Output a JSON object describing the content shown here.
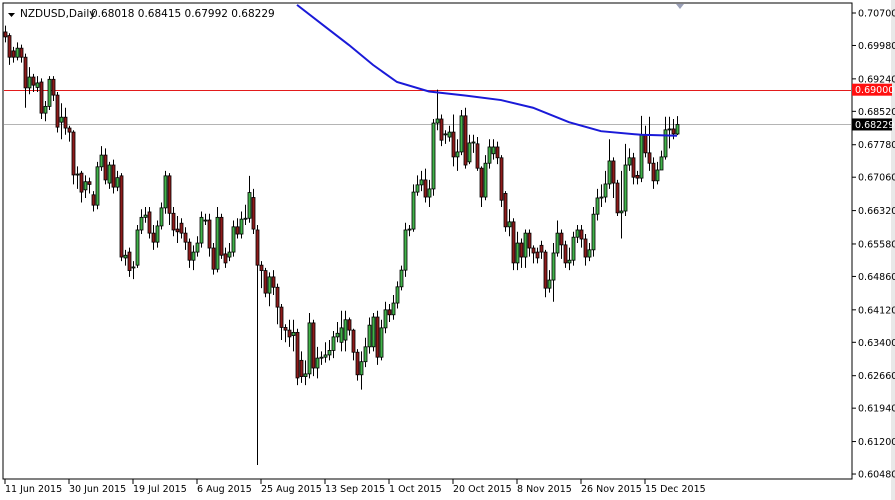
{
  "header": {
    "symbol": "NZDUSD,Daily",
    "ohlc_text": "0.68018 0.68415 0.67992 0.68229",
    "dropdown_icon": "triangle-down-icon"
  },
  "colors": {
    "bull": "#41b24a",
    "bear": "#8e1b1b",
    "outline": "#000000",
    "moving_average": "#1a1ad8",
    "resistance_line": "#e31b1b",
    "bid_line": "#b4b4b4",
    "resistance_label_bg": "#ff1010",
    "bid_label_bg": "#000000"
  },
  "chart_data": {
    "type": "candlestick",
    "title": "NZDUSD,Daily",
    "ylim": [
      0.6048,
      0.707
    ],
    "y_ticks": [
      "0.70700",
      "0.69980",
      "0.69240",
      "0.68520",
      "0.67780",
      "0.67060",
      "0.66320",
      "0.65580",
      "0.64860",
      "0.64120",
      "0.63400",
      "0.62660",
      "0.61940",
      "0.61200",
      "0.60480"
    ],
    "x_tick_labels": [
      {
        "label": "11 Jun 2015",
        "bar": 0
      },
      {
        "label": "30 Jun 2015",
        "bar": 16
      },
      {
        "label": "19 Jul 2015",
        "bar": 32
      },
      {
        "label": "6 Aug 2015",
        "bar": 48
      },
      {
        "label": "25 Aug 2015",
        "bar": 64
      },
      {
        "label": "13 Sep 2015",
        "bar": 80
      },
      {
        "label": "1 Oct 2015",
        "bar": 96
      },
      {
        "label": "20 Oct 2015",
        "bar": 112
      },
      {
        "label": "8 Nov 2015",
        "bar": 128
      },
      {
        "label": "26 Nov 2015",
        "bar": 144
      },
      {
        "label": "15 Dec 2015",
        "bar": 160
      }
    ],
    "horizontal_lines": [
      {
        "value": 0.69,
        "label": "0.69000",
        "kind": "resistance"
      },
      {
        "value": 0.68229,
        "label": "0.68229",
        "kind": "bid"
      }
    ],
    "moving_average": [
      [
        73,
        0.7088
      ],
      [
        80,
        0.704
      ],
      [
        86,
        0.6999
      ],
      [
        92,
        0.6955
      ],
      [
        98,
        0.6917
      ],
      [
        106,
        0.6896
      ],
      [
        115,
        0.6887
      ],
      [
        124,
        0.6877
      ],
      [
        132,
        0.686
      ],
      [
        141,
        0.6828
      ],
      [
        149,
        0.6808
      ],
      [
        159,
        0.68
      ],
      [
        168,
        0.6798
      ]
    ],
    "candles_ohlc": [
      [
        0.7028,
        0.7042,
        0.7005,
        0.7017
      ],
      [
        0.702,
        0.7025,
        0.6955,
        0.6972
      ],
      [
        0.6986,
        0.6995,
        0.696,
        0.6972
      ],
      [
        0.6972,
        0.7005,
        0.6965,
        0.6992
      ],
      [
        0.6992,
        0.7,
        0.696,
        0.6972
      ],
      [
        0.6972,
        0.698,
        0.686,
        0.6904
      ],
      [
        0.6904,
        0.695,
        0.689,
        0.6928
      ],
      [
        0.6928,
        0.6935,
        0.6895,
        0.691
      ],
      [
        0.6905,
        0.693,
        0.6895,
        0.6915
      ],
      [
        0.6917,
        0.6925,
        0.6835,
        0.6848
      ],
      [
        0.6848,
        0.6875,
        0.683,
        0.6863
      ],
      [
        0.6863,
        0.693,
        0.6855,
        0.6923
      ],
      [
        0.6923,
        0.693,
        0.6875,
        0.6888
      ],
      [
        0.6888,
        0.6895,
        0.6805,
        0.6817
      ],
      [
        0.6828,
        0.687,
        0.679,
        0.6839
      ],
      [
        0.6839,
        0.686,
        0.68,
        0.6815
      ],
      [
        0.6815,
        0.682,
        0.6785,
        0.6806
      ],
      [
        0.6806,
        0.681,
        0.669,
        0.6711
      ],
      [
        0.6711,
        0.673,
        0.668,
        0.6713
      ],
      [
        0.6715,
        0.672,
        0.665,
        0.6673
      ],
      [
        0.6678,
        0.671,
        0.666,
        0.6696
      ],
      [
        0.6696,
        0.6705,
        0.667,
        0.669
      ],
      [
        0.6667,
        0.6675,
        0.663,
        0.6644
      ],
      [
        0.6644,
        0.674,
        0.6635,
        0.6729
      ],
      [
        0.6729,
        0.6775,
        0.672,
        0.6755
      ],
      [
        0.6755,
        0.677,
        0.669,
        0.67
      ],
      [
        0.6693,
        0.674,
        0.668,
        0.6733
      ],
      [
        0.6733,
        0.6745,
        0.667,
        0.6684
      ],
      [
        0.6684,
        0.672,
        0.6675,
        0.6705
      ],
      [
        0.6709,
        0.6715,
        0.652,
        0.6529
      ],
      [
        0.6527,
        0.6545,
        0.651,
        0.6533
      ],
      [
        0.654,
        0.655,
        0.6485,
        0.6499
      ],
      [
        0.6505,
        0.652,
        0.648,
        0.6507
      ],
      [
        0.6511,
        0.66,
        0.6505,
        0.6589
      ],
      [
        0.6589,
        0.6635,
        0.658,
        0.6617
      ],
      [
        0.6617,
        0.664,
        0.6605,
        0.6622
      ],
      [
        0.6629,
        0.664,
        0.657,
        0.6582
      ],
      [
        0.6582,
        0.66,
        0.6545,
        0.6562
      ],
      [
        0.6562,
        0.661,
        0.655,
        0.6598
      ],
      [
        0.6598,
        0.665,
        0.659,
        0.6638
      ],
      [
        0.6638,
        0.672,
        0.6625,
        0.6709
      ],
      [
        0.6709,
        0.6715,
        0.66,
        0.6626
      ],
      [
        0.6626,
        0.664,
        0.6575,
        0.6589
      ],
      [
        0.6591,
        0.662,
        0.656,
        0.6585
      ],
      [
        0.6604,
        0.6615,
        0.657,
        0.6582
      ],
      [
        0.6582,
        0.6595,
        0.6545,
        0.6562
      ],
      [
        0.6562,
        0.657,
        0.6505,
        0.6522
      ],
      [
        0.6522,
        0.6555,
        0.65,
        0.654
      ],
      [
        0.654,
        0.6575,
        0.653,
        0.656
      ],
      [
        0.656,
        0.663,
        0.655,
        0.6617
      ],
      [
        0.6609,
        0.6625,
        0.66,
        0.6611
      ],
      [
        0.6611,
        0.6625,
        0.653,
        0.6549
      ],
      [
        0.6549,
        0.656,
        0.649,
        0.6502
      ],
      [
        0.6502,
        0.664,
        0.6495,
        0.6617
      ],
      [
        0.6617,
        0.6625,
        0.6525,
        0.6533
      ],
      [
        0.6536,
        0.655,
        0.6505,
        0.6516
      ],
      [
        0.6529,
        0.656,
        0.652,
        0.654
      ],
      [
        0.654,
        0.661,
        0.653,
        0.6596
      ],
      [
        0.6596,
        0.6615,
        0.657,
        0.658
      ],
      [
        0.658,
        0.663,
        0.657,
        0.6613
      ],
      [
        0.6613,
        0.6645,
        0.66,
        0.6615
      ],
      [
        0.6615,
        0.6709,
        0.6605,
        0.6672
      ],
      [
        0.6661,
        0.668,
        0.658,
        0.6591
      ],
      [
        0.6589,
        0.66,
        0.6068,
        0.6511
      ],
      [
        0.6511,
        0.652,
        0.646,
        0.6499
      ],
      [
        0.6499,
        0.6505,
        0.644,
        0.6449
      ],
      [
        0.6449,
        0.6495,
        0.642,
        0.6485
      ],
      [
        0.6485,
        0.65,
        0.6445,
        0.6462
      ],
      [
        0.6462,
        0.647,
        0.638,
        0.6418
      ],
      [
        0.6418,
        0.6425,
        0.6345,
        0.6373
      ],
      [
        0.6373,
        0.638,
        0.634,
        0.6367
      ],
      [
        0.6367,
        0.639,
        0.633,
        0.6352
      ],
      [
        0.6355,
        0.639,
        0.632,
        0.6362
      ],
      [
        0.6362,
        0.637,
        0.6245,
        0.6261
      ],
      [
        0.63,
        0.632,
        0.625,
        0.6264
      ],
      [
        0.6264,
        0.63,
        0.6245,
        0.627
      ],
      [
        0.627,
        0.6405,
        0.626,
        0.6383
      ],
      [
        0.6383,
        0.639,
        0.6265,
        0.6283
      ],
      [
        0.6283,
        0.633,
        0.626,
        0.6305
      ],
      [
        0.6305,
        0.632,
        0.629,
        0.6307
      ],
      [
        0.6307,
        0.634,
        0.6295,
        0.6312
      ],
      [
        0.6312,
        0.6345,
        0.63,
        0.6322
      ],
      [
        0.6322,
        0.6365,
        0.6305,
        0.6352
      ],
      [
        0.6352,
        0.6385,
        0.634,
        0.636
      ],
      [
        0.634,
        0.641,
        0.632,
        0.6372
      ],
      [
        0.6345,
        0.641,
        0.632,
        0.639
      ],
      [
        0.639,
        0.6395,
        0.6355,
        0.6367
      ],
      [
        0.6367,
        0.637,
        0.63,
        0.6318
      ],
      [
        0.6318,
        0.6325,
        0.6255,
        0.6268
      ],
      [
        0.6268,
        0.632,
        0.6235,
        0.6297
      ],
      [
        0.6297,
        0.635,
        0.6285,
        0.633
      ],
      [
        0.633,
        0.6395,
        0.6315,
        0.6378
      ],
      [
        0.633,
        0.6405,
        0.632,
        0.6396
      ],
      [
        0.6396,
        0.641,
        0.629,
        0.6307
      ],
      [
        0.6307,
        0.639,
        0.63,
        0.6372
      ],
      [
        0.6372,
        0.643,
        0.636,
        0.6412
      ],
      [
        0.6412,
        0.6425,
        0.6385,
        0.6401
      ],
      [
        0.6401,
        0.6445,
        0.639,
        0.6427
      ],
      [
        0.6427,
        0.6475,
        0.6415,
        0.6463
      ],
      [
        0.6463,
        0.651,
        0.6455,
        0.65
      ],
      [
        0.65,
        0.6605,
        0.6485,
        0.6589
      ],
      [
        0.6589,
        0.66,
        0.6575,
        0.6591
      ],
      [
        0.6591,
        0.669,
        0.6585,
        0.6673
      ],
      [
        0.6673,
        0.671,
        0.6665,
        0.6689
      ],
      [
        0.6689,
        0.672,
        0.6675,
        0.67
      ],
      [
        0.67,
        0.6725,
        0.665,
        0.6662
      ],
      [
        0.6662,
        0.67,
        0.664,
        0.668
      ],
      [
        0.668,
        0.6835,
        0.6665,
        0.6826
      ],
      [
        0.6826,
        0.69,
        0.681,
        0.6835
      ],
      [
        0.6835,
        0.6845,
        0.6775,
        0.6788
      ],
      [
        0.68,
        0.681,
        0.678,
        0.6802
      ],
      [
        0.6795,
        0.682,
        0.6785,
        0.6806
      ],
      [
        0.6806,
        0.6845,
        0.673,
        0.6751
      ],
      [
        0.6751,
        0.679,
        0.672,
        0.6762
      ],
      [
        0.6762,
        0.6855,
        0.6755,
        0.6842
      ],
      [
        0.6842,
        0.686,
        0.6725,
        0.6733
      ],
      [
        0.674,
        0.68,
        0.6735,
        0.6782
      ],
      [
        0.6782,
        0.68,
        0.676,
        0.6784
      ],
      [
        0.678,
        0.6795,
        0.672,
        0.6726
      ],
      [
        0.6726,
        0.673,
        0.664,
        0.6662
      ],
      [
        0.6662,
        0.6755,
        0.6655,
        0.6737
      ],
      [
        0.6737,
        0.679,
        0.6725,
        0.6773
      ],
      [
        0.6758,
        0.679,
        0.6745,
        0.6773
      ],
      [
        0.6773,
        0.6785,
        0.6735,
        0.6749
      ],
      [
        0.6749,
        0.6755,
        0.664,
        0.6655
      ],
      [
        0.667,
        0.6675,
        0.6585,
        0.6596
      ],
      [
        0.6596,
        0.6635,
        0.6575,
        0.6607
      ],
      [
        0.6607,
        0.6615,
        0.65,
        0.6516
      ],
      [
        0.6516,
        0.6585,
        0.65,
        0.656
      ],
      [
        0.656,
        0.657,
        0.6505,
        0.6529
      ],
      [
        0.6529,
        0.659,
        0.6505,
        0.6582
      ],
      [
        0.6582,
        0.659,
        0.653,
        0.6549
      ],
      [
        0.6549,
        0.6555,
        0.6515,
        0.6538
      ],
      [
        0.654,
        0.655,
        0.6515,
        0.6527
      ],
      [
        0.6555,
        0.6565,
        0.6525,
        0.654
      ],
      [
        0.654,
        0.6545,
        0.644,
        0.646
      ],
      [
        0.646,
        0.65,
        0.645,
        0.6478
      ],
      [
        0.6478,
        0.656,
        0.643,
        0.6538
      ],
      [
        0.6538,
        0.661,
        0.653,
        0.6582
      ],
      [
        0.6582,
        0.659,
        0.6525,
        0.6556
      ],
      [
        0.6556,
        0.6565,
        0.6505,
        0.6516
      ],
      [
        0.6516,
        0.655,
        0.65,
        0.6522
      ],
      [
        0.6522,
        0.6585,
        0.651,
        0.6573
      ],
      [
        0.6573,
        0.66,
        0.656,
        0.6589
      ],
      [
        0.6589,
        0.66,
        0.655,
        0.6569
      ],
      [
        0.6569,
        0.658,
        0.651,
        0.6529
      ],
      [
        0.6529,
        0.656,
        0.652,
        0.6545
      ],
      [
        0.6545,
        0.664,
        0.653,
        0.6624
      ],
      [
        0.6624,
        0.668,
        0.661,
        0.666
      ],
      [
        0.666,
        0.669,
        0.664,
        0.6662
      ],
      [
        0.6662,
        0.672,
        0.665,
        0.6691
      ],
      [
        0.6691,
        0.679,
        0.668,
        0.6742
      ],
      [
        0.6742,
        0.675,
        0.666,
        0.6693
      ],
      [
        0.6693,
        0.67,
        0.662,
        0.6627
      ],
      [
        0.6627,
        0.672,
        0.657,
        0.6631
      ],
      [
        0.6631,
        0.678,
        0.662,
        0.6733
      ],
      [
        0.6733,
        0.677,
        0.672,
        0.6749
      ],
      [
        0.6749,
        0.676,
        0.669,
        0.6706
      ],
      [
        0.671,
        0.672,
        0.669,
        0.6704
      ],
      [
        0.6704,
        0.6842,
        0.6695,
        0.68
      ],
      [
        0.68,
        0.682,
        0.675,
        0.676
      ],
      [
        0.676,
        0.684,
        0.672,
        0.6737
      ],
      [
        0.6737,
        0.675,
        0.668,
        0.6698
      ],
      [
        0.6698,
        0.674,
        0.669,
        0.6722
      ],
      [
        0.6722,
        0.6765,
        0.6735,
        0.6751
      ],
      [
        0.6751,
        0.684,
        0.6745,
        0.6811
      ],
      [
        0.6811,
        0.684,
        0.677,
        0.6813
      ],
      [
        0.6813,
        0.6835,
        0.679,
        0.6802
      ],
      [
        0.68018,
        0.68415,
        0.67992,
        0.68229
      ]
    ]
  }
}
